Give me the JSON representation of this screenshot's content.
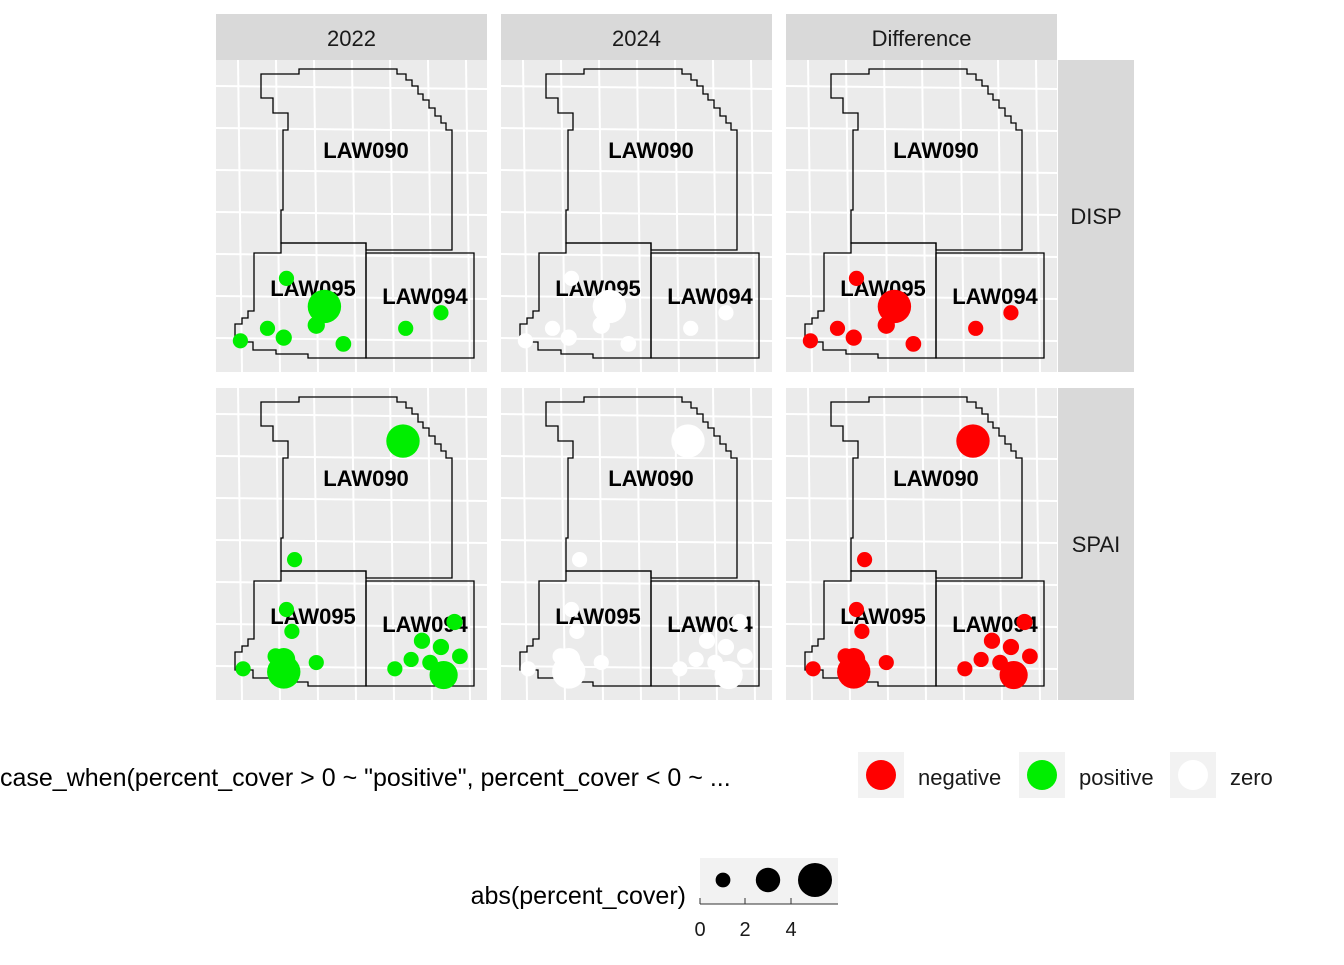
{
  "chart_data": {
    "type": "scatter",
    "facet_columns": [
      "2022",
      "2024",
      "Difference"
    ],
    "facet_rows": [
      "DISP",
      "SPAI"
    ],
    "plot_labels": [
      "LAW090",
      "LAW095",
      "LAW094"
    ],
    "colors": {
      "panel_bg": "#ebebeb",
      "strip_bg": "#d9d9d9",
      "grid": "#ffffff",
      "outline": "#000000",
      "positive": "#00ee00",
      "negative": "#ff0000",
      "zero": "#ffffff",
      "legend_key_bg": "#f2f2f2"
    },
    "category_colors": {
      "2022": "positive",
      "2024": "zero",
      "Difference": "negative"
    },
    "points": {
      "DISP": [
        {
          "x": 0.26,
          "y": 0.3,
          "size": 1.0
        },
        {
          "x": 0.19,
          "y": 0.14,
          "size": 1.0
        },
        {
          "x": 0.4,
          "y": 0.21,
          "size": 4.5
        },
        {
          "x": 0.37,
          "y": 0.15,
          "size": 1.4
        },
        {
          "x": 0.47,
          "y": 0.09,
          "size": 1.1
        },
        {
          "x": 0.25,
          "y": 0.11,
          "size": 1.2
        },
        {
          "x": 0.09,
          "y": 0.1,
          "size": 1.0
        },
        {
          "x": 0.7,
          "y": 0.14,
          "size": 1.0
        },
        {
          "x": 0.83,
          "y": 0.19,
          "size": 1.0
        }
      ],
      "SPAI": [
        {
          "x": 0.69,
          "y": 0.83,
          "size": 4.5
        },
        {
          "x": 0.29,
          "y": 0.45,
          "size": 1.0
        },
        {
          "x": 0.26,
          "y": 0.29,
          "size": 1.0
        },
        {
          "x": 0.28,
          "y": 0.22,
          "size": 1.0
        },
        {
          "x": 0.22,
          "y": 0.14,
          "size": 1.2
        },
        {
          "x": 0.25,
          "y": 0.13,
          "size": 2.5
        },
        {
          "x": 0.25,
          "y": 0.09,
          "size": 4.5
        },
        {
          "x": 0.1,
          "y": 0.1,
          "size": 1.0
        },
        {
          "x": 0.37,
          "y": 0.12,
          "size": 1.0
        },
        {
          "x": 0.88,
          "y": 0.25,
          "size": 1.2
        },
        {
          "x": 0.76,
          "y": 0.19,
          "size": 1.2
        },
        {
          "x": 0.83,
          "y": 0.17,
          "size": 1.2
        },
        {
          "x": 0.72,
          "y": 0.13,
          "size": 1.0
        },
        {
          "x": 0.79,
          "y": 0.12,
          "size": 1.1
        },
        {
          "x": 0.66,
          "y": 0.1,
          "size": 1.0
        },
        {
          "x": 0.84,
          "y": 0.08,
          "size": 3.5
        },
        {
          "x": 0.9,
          "y": 0.14,
          "size": 1.1
        }
      ]
    },
    "legend_color": {
      "title": "case_when(percent_cover > 0 ~ \"positive\", percent_cover < 0 ~ ...",
      "entries": [
        {
          "label": "negative",
          "color": "negative"
        },
        {
          "label": "positive",
          "color": "positive"
        },
        {
          "label": "zero",
          "color": "zero"
        }
      ]
    },
    "legend_size": {
      "title": "abs(percent_cover)",
      "breaks": [
        1,
        3,
        5
      ],
      "tick_labels": [
        "0",
        "2",
        "4"
      ]
    }
  }
}
